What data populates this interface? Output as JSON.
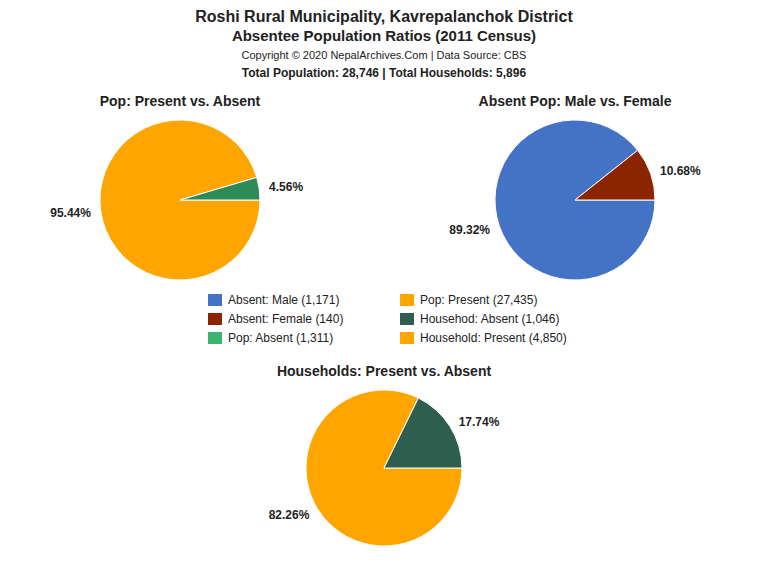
{
  "title": "Roshi Rural Municipality, Kavrepalanchok District",
  "subtitle": "Absentee Population Ratios (2011 Census)",
  "annotations": [
    "Copyright © 2020 NepalArchives.Com | Data Source: CBS",
    "Total Population: 28,746 | Total Households: 5,896"
  ],
  "series": [
    {
      "name": "Absent: Male (1,171)",
      "color": "#4472C4"
    },
    {
      "name": "Absent: Female (140)",
      "color": "#8B2500"
    },
    {
      "name": "Pop: Absent (1,311)",
      "color": "#3CB371"
    },
    {
      "name": "Pop: Present (27,435)",
      "color": "#FFA500"
    },
    {
      "name": "Househod: Absent (1,046)",
      "color": "#2E5E4E"
    },
    {
      "name": "Household: Present (4,850)",
      "color": "#FFA500"
    }
  ],
  "chart_data": [
    {
      "type": "pie",
      "title": "Pop: Present vs. Absent",
      "values": [
        95.44,
        4.56
      ],
      "value_labels": [
        "95.44%",
        "4.56%"
      ],
      "colors": [
        "#FFA500",
        "#2E8B57"
      ],
      "data_labels": true
    },
    {
      "type": "pie",
      "title": "Absent Pop: Male vs. Female",
      "values": [
        89.32,
        10.68
      ],
      "value_labels": [
        "89.32%",
        "10.68%"
      ],
      "colors": [
        "#4472C4",
        "#8B2500"
      ],
      "data_labels": true
    },
    {
      "type": "pie",
      "title": "Households: Present vs. Absent",
      "values": [
        82.26,
        17.74
      ],
      "value_labels": [
        "82.26%",
        "17.74%"
      ],
      "colors": [
        "#FFA500",
        "#2E5E4E"
      ],
      "data_labels": true
    }
  ]
}
